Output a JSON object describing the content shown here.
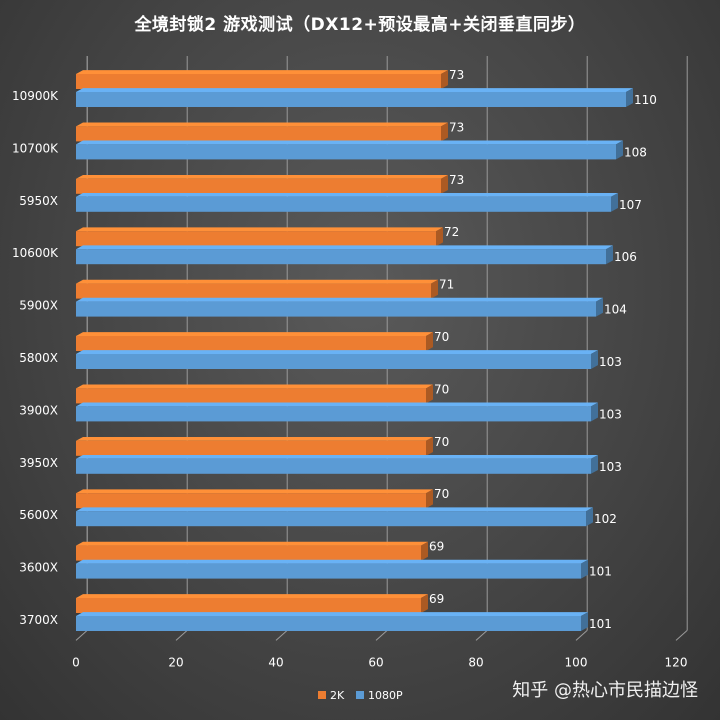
{
  "watermark": "知乎 @热心市民描边怪",
  "colors": {
    "series_2k": "#ED7D31",
    "series_1080p": "#5B9BD5",
    "grid": "#9a9a9a",
    "text": "#ffffff"
  },
  "chart_data": {
    "type": "bar",
    "orientation": "horizontal",
    "style": "3d",
    "title": "全境封锁2 游戏测试（DX12+预设最高+关闭垂直同步）",
    "categories": [
      "10900K",
      "10700K",
      "5950X",
      "10600K",
      "5900X",
      "5800X",
      "3900X",
      "3950X",
      "5600X",
      "3600X",
      "3700X"
    ],
    "series": [
      {
        "name": "2K",
        "values": [
          73,
          73,
          73,
          72,
          71,
          70,
          70,
          70,
          70,
          69,
          69
        ]
      },
      {
        "name": "1080P",
        "values": [
          110,
          108,
          107,
          106,
          104,
          103,
          103,
          103,
          102,
          101,
          101
        ]
      }
    ],
    "x_ticks": [
      "0",
      "20",
      "40",
      "60",
      "80",
      "100",
      "120"
    ],
    "xlim": [
      0,
      120
    ],
    "grid": true,
    "legend": "bottom"
  }
}
